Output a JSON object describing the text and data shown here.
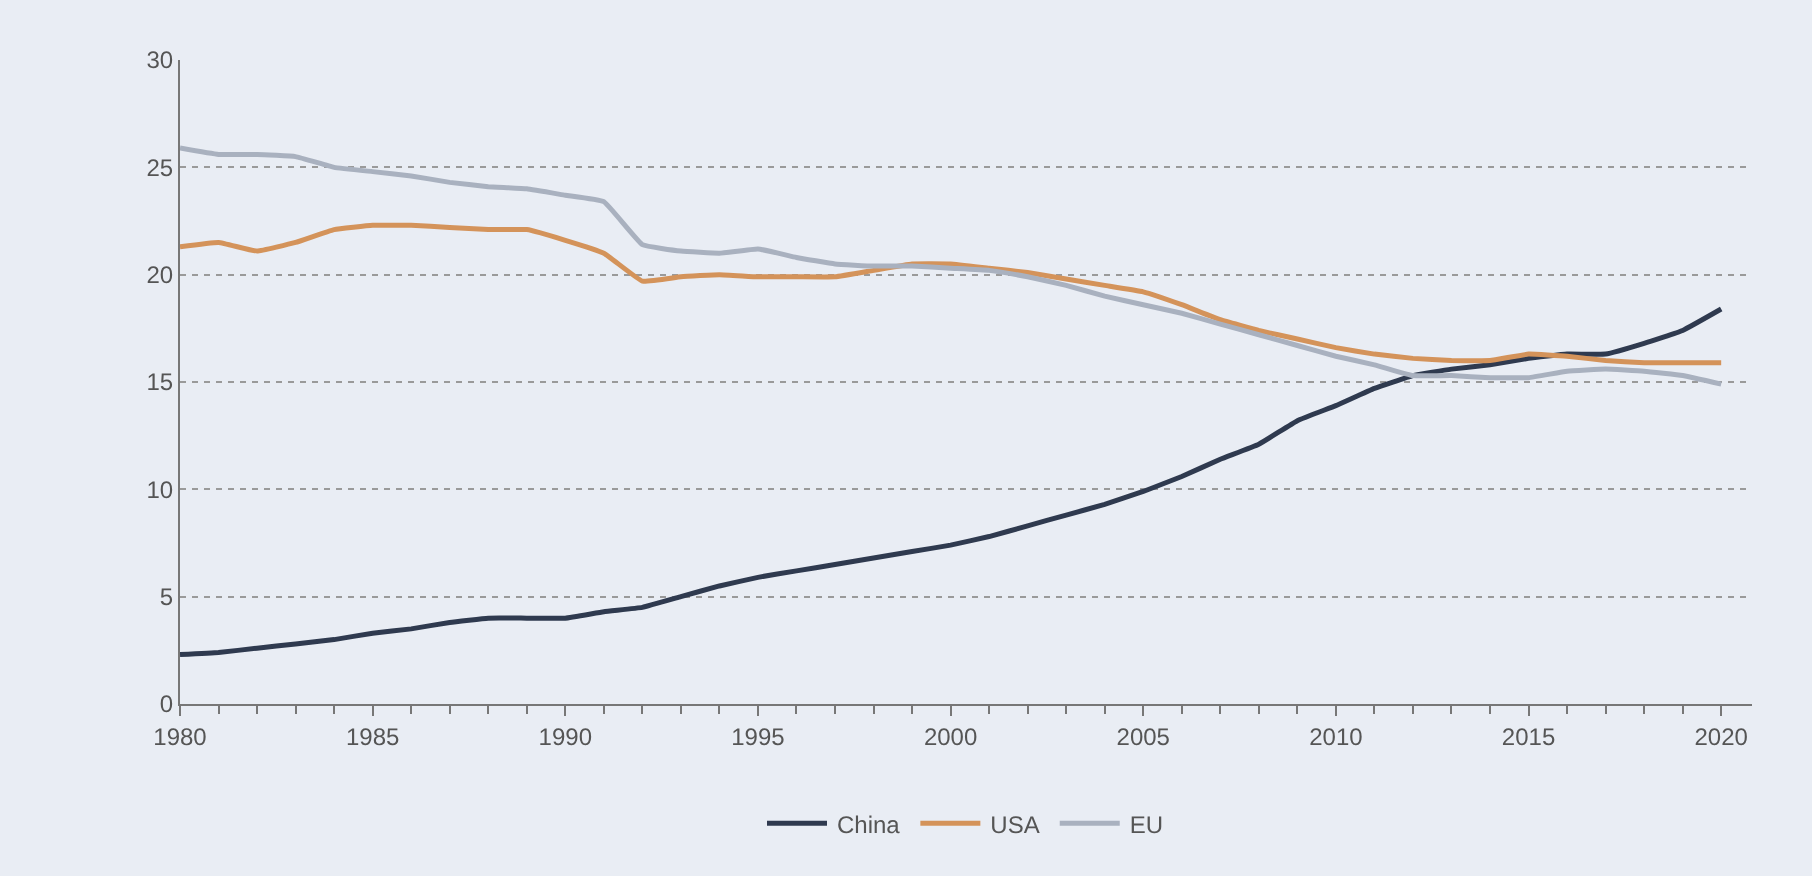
{
  "chart_data": {
    "type": "line",
    "x": [
      1980,
      1981,
      1982,
      1983,
      1984,
      1985,
      1986,
      1987,
      1988,
      1989,
      1990,
      1991,
      1992,
      1993,
      1994,
      1995,
      1996,
      1997,
      1998,
      1999,
      2000,
      2001,
      2002,
      2003,
      2004,
      2005,
      2006,
      2007,
      2008,
      2009,
      2010,
      2011,
      2012,
      2013,
      2014,
      2015,
      2016,
      2017,
      2018,
      2019,
      2020
    ],
    "series": [
      {
        "name": "China",
        "color": "#2f3a4f",
        "values": [
          2.3,
          2.4,
          2.6,
          2.8,
          3.0,
          3.3,
          3.5,
          3.8,
          4.0,
          4.0,
          4.0,
          4.3,
          4.5,
          5.0,
          5.5,
          5.9,
          6.2,
          6.5,
          6.8,
          7.1,
          7.4,
          7.8,
          8.3,
          8.8,
          9.3,
          9.9,
          10.6,
          11.4,
          12.1,
          13.2,
          13.9,
          14.7,
          15.3,
          15.6,
          15.8,
          16.1,
          16.3,
          16.3,
          16.8,
          17.4,
          18.4
        ]
      },
      {
        "name": "USA",
        "color": "#d4935a",
        "values": [
          21.3,
          21.5,
          21.1,
          21.5,
          22.1,
          22.3,
          22.3,
          22.2,
          22.1,
          22.1,
          21.6,
          21.0,
          19.7,
          19.9,
          20.0,
          19.9,
          19.9,
          19.9,
          20.2,
          20.5,
          20.5,
          20.3,
          20.1,
          19.8,
          19.5,
          19.2,
          18.6,
          17.9,
          17.4,
          17.0,
          16.6,
          16.3,
          16.1,
          16.0,
          16.0,
          16.3,
          16.2,
          16.0,
          15.9,
          15.9,
          15.9
        ]
      },
      {
        "name": "EU",
        "color": "#a9b1bf",
        "values": [
          25.9,
          25.6,
          25.6,
          25.5,
          25.0,
          24.8,
          24.6,
          24.3,
          24.1,
          24.0,
          23.7,
          23.4,
          21.4,
          21.1,
          21.0,
          21.2,
          20.8,
          20.5,
          20.4,
          20.4,
          20.3,
          20.2,
          19.9,
          19.5,
          19.0,
          18.6,
          18.2,
          17.7,
          17.2,
          16.7,
          16.2,
          15.8,
          15.3,
          15.3,
          15.2,
          15.2,
          15.5,
          15.6,
          15.5,
          15.3,
          14.9
        ]
      }
    ],
    "xlim": [
      1980,
      2020.8
    ],
    "xticks": [
      1980,
      1985,
      1990,
      1995,
      2000,
      2005,
      2010,
      2015,
      2020
    ],
    "ylim": [
      0,
      30
    ],
    "yticks": [
      0,
      5,
      10,
      15,
      20,
      25,
      30
    ],
    "grid": "y",
    "legend": "bottom",
    "line_style": "solid",
    "marker": "none"
  }
}
